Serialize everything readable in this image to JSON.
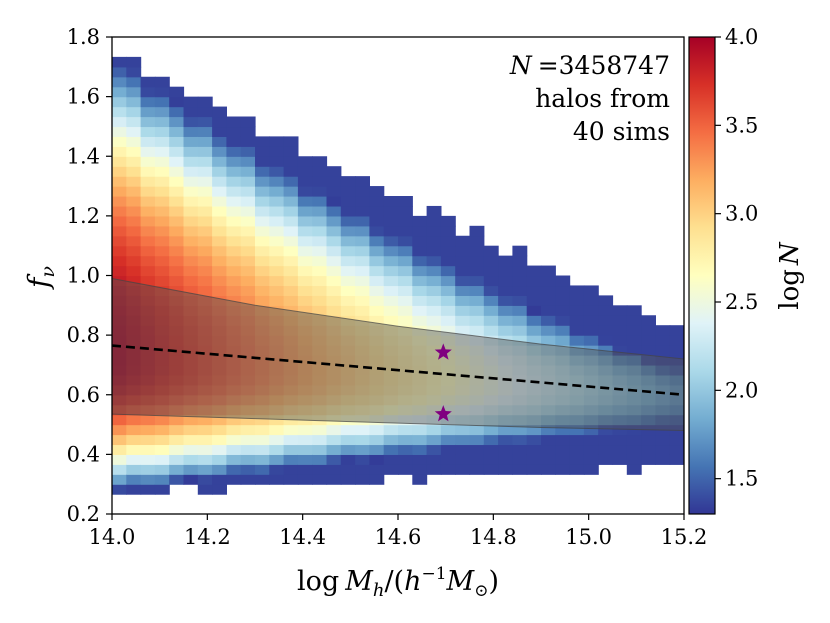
{
  "chart_data": {
    "type": "heatmap",
    "title": "",
    "xlabel": "log M_h/(h^-1 M_sun)",
    "xlabel_parts": {
      "log": "log",
      "M": "M",
      "h_sub": "h",
      "open": "/(",
      "h": "h",
      "exp": "−1",
      "M2": "M",
      "sun_sub": "⊙",
      "close": ")"
    },
    "ylabel": "f_ν",
    "ylabel_parts": {
      "f": "f",
      "nu": "ν"
    },
    "xlim": [
      14.0,
      15.2
    ],
    "ylim": [
      0.2,
      1.8
    ],
    "x_ticks": [
      14.0,
      14.2,
      14.4,
      14.6,
      14.8,
      15.0,
      15.2
    ],
    "x_tick_labels": [
      "14.0",
      "14.2",
      "14.4",
      "14.6",
      "14.8",
      "15.0",
      "15.2"
    ],
    "y_ticks": [
      0.2,
      0.4,
      0.6,
      0.8,
      1.0,
      1.2,
      1.4,
      1.6,
      1.8
    ],
    "y_tick_labels": [
      "0.2",
      "0.4",
      "0.6",
      "0.8",
      "1.0",
      "1.2",
      "1.4",
      "1.6",
      "1.8"
    ],
    "colorbar": {
      "label": "log N",
      "label_parts": {
        "log": "log",
        "N": "N"
      },
      "range": [
        1.3,
        4.0
      ],
      "ticks": [
        1.5,
        2.0,
        2.5,
        3.0,
        3.5,
        4.0
      ],
      "tick_labels": [
        "1.5",
        "2.0",
        "2.5",
        "3.0",
        "3.5",
        "4.0"
      ],
      "colormap": "RdYlBu_r",
      "colormap_stops": [
        "#313695",
        "#4575b4",
        "#74add1",
        "#abd9e9",
        "#e0f3f8",
        "#ffffbf",
        "#fee090",
        "#fdae61",
        "#f46d43",
        "#d73027",
        "#a50026"
      ]
    },
    "bins": {
      "x_count": 40,
      "y_count": 48,
      "x_range": [
        14.0,
        15.2
      ],
      "y_range": [
        0.2,
        1.8
      ]
    },
    "distribution": {
      "center_at_14": 0.72,
      "center_at_15_2": 0.6,
      "lower_edge_at_14": 0.27,
      "lower_edge_at_15_2": 0.36,
      "upper_edge_at_14": 1.74,
      "upper_edge_at_15_2": 0.8,
      "peak_logN": 4.0
    },
    "median_line": {
      "style": "dashed",
      "color": "#000000",
      "x": [
        14.0,
        15.2
      ],
      "y": [
        0.765,
        0.6
      ]
    },
    "scatter_band": {
      "color": "#555555",
      "opacity": 0.45,
      "x": [
        14.0,
        14.3,
        14.6,
        14.9,
        15.2
      ],
      "upper": [
        0.99,
        0.9,
        0.83,
        0.77,
        0.72
      ],
      "lower": [
        0.535,
        0.52,
        0.505,
        0.49,
        0.48
      ]
    },
    "stars": [
      {
        "x": 14.695,
        "y": 0.742
      },
      {
        "x": 14.695,
        "y": 0.535
      }
    ],
    "star_color": "#800080",
    "annotation_lines": [
      "N =3458747",
      "halos from",
      "40 sims"
    ],
    "annotation_parts": {
      "var": "N",
      "eq": "=3458747"
    }
  }
}
